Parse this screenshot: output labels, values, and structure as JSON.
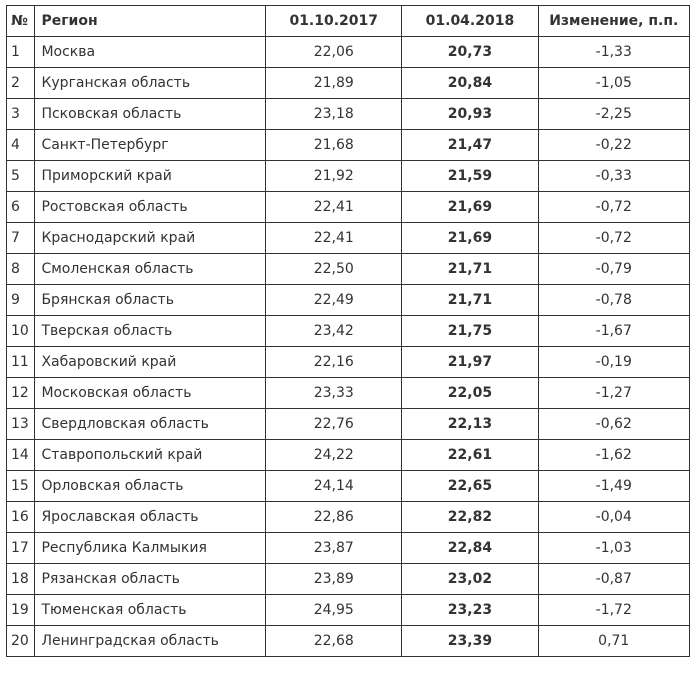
{
  "table": {
    "headers": [
      "№",
      "Регион",
      "01.10.2017",
      "01.04.2018",
      "Изменение, п.п."
    ],
    "rows": [
      [
        "1",
        "Москва",
        "22,06",
        "20,73",
        "-1,33"
      ],
      [
        "2",
        "Курганская область",
        "21,89",
        "20,84",
        "-1,05"
      ],
      [
        "3",
        "Псковская область",
        "23,18",
        "20,93",
        "-2,25"
      ],
      [
        "4",
        "Санкт-Петербург",
        "21,68",
        "21,47",
        "-0,22"
      ],
      [
        "5",
        "Приморский край",
        "21,92",
        "21,59",
        "-0,33"
      ],
      [
        "6",
        "Ростовская область",
        "22,41",
        "21,69",
        "-0,72"
      ],
      [
        "7",
        "Краснодарский край",
        "22,41",
        "21,69",
        "-0,72"
      ],
      [
        "8",
        "Смоленская область",
        "22,50",
        "21,71",
        "-0,79"
      ],
      [
        "9",
        "Брянская область",
        "22,49",
        "21,71",
        "-0,78"
      ],
      [
        "10",
        "Тверская область",
        "23,42",
        "21,75",
        "-1,67"
      ],
      [
        "11",
        "Хабаровский край",
        "22,16",
        "21,97",
        "-0,19"
      ],
      [
        "12",
        "Московская область",
        "23,33",
        "22,05",
        "-1,27"
      ],
      [
        "13",
        "Свердловская область",
        "22,76",
        "22,13",
        "-0,62"
      ],
      [
        "14",
        "Ставропольский край",
        "24,22",
        "22,61",
        "-1,62"
      ],
      [
        "15",
        "Орловская область",
        "24,14",
        "22,65",
        "-1,49"
      ],
      [
        "16",
        "Ярославская область",
        "22,86",
        "22,82",
        "-0,04"
      ],
      [
        "17",
        "Республика Калмыкия",
        "23,87",
        "22,84",
        "-1,03"
      ],
      [
        "18",
        "Рязанская область",
        "23,89",
        "23,02",
        "-0,87"
      ],
      [
        "19",
        "Тюменская область",
        "24,95",
        "23,23",
        "-1,72"
      ],
      [
        "20",
        "Ленинградская область",
        "22,68",
        "23,39",
        "0,71"
      ]
    ]
  }
}
